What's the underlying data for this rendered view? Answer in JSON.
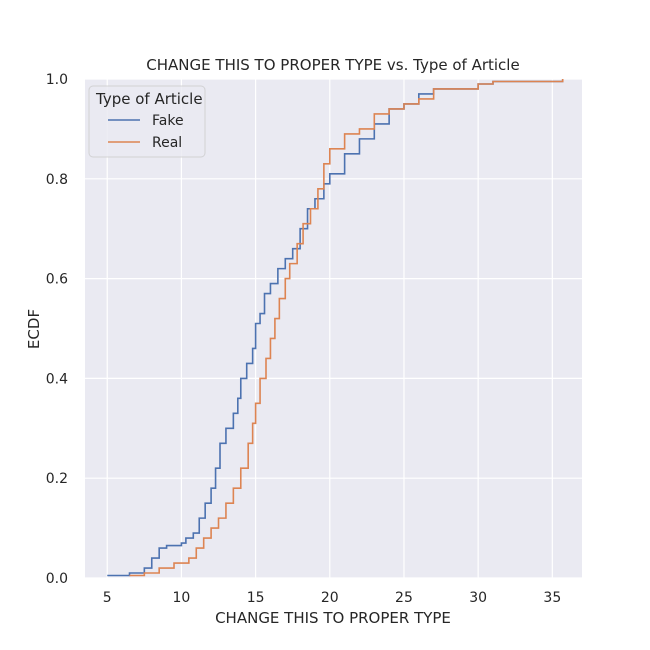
{
  "chart_data": {
    "type": "line",
    "title": "CHANGE THIS TO PROPER TYPE vs. Type of Article",
    "xlabel": "CHANGE THIS TO PROPER TYPE",
    "ylabel": "ECDF",
    "xlim": [
      3.5,
      37.0
    ],
    "ylim": [
      0.0,
      1.0
    ],
    "xticks": [
      5,
      10,
      15,
      20,
      25,
      30,
      35
    ],
    "yticks": [
      0.0,
      0.2,
      0.4,
      0.6,
      0.8,
      1.0
    ],
    "xtick_labels": [
      "5",
      "10",
      "15",
      "20",
      "25",
      "30",
      "35"
    ],
    "ytick_labels": [
      "0.0",
      "0.2",
      "0.4",
      "0.6",
      "0.8",
      "1.0"
    ],
    "grid": true,
    "legend": {
      "title": "Type of Article",
      "placement": "top-left"
    },
    "series": [
      {
        "name": "Fake",
        "color": "#4c72b0",
        "points": [
          [
            5.0,
            0.005
          ],
          [
            6.5,
            0.01
          ],
          [
            7.5,
            0.02
          ],
          [
            8.0,
            0.04
          ],
          [
            8.5,
            0.06
          ],
          [
            9.0,
            0.065
          ],
          [
            10.0,
            0.07
          ],
          [
            10.3,
            0.08
          ],
          [
            10.8,
            0.09
          ],
          [
            11.2,
            0.12
          ],
          [
            11.6,
            0.15
          ],
          [
            12.0,
            0.18
          ],
          [
            12.3,
            0.22
          ],
          [
            12.6,
            0.27
          ],
          [
            13.0,
            0.3
          ],
          [
            13.5,
            0.33
          ],
          [
            13.8,
            0.36
          ],
          [
            14.0,
            0.4
          ],
          [
            14.4,
            0.43
          ],
          [
            14.8,
            0.46
          ],
          [
            15.0,
            0.51
          ],
          [
            15.3,
            0.53
          ],
          [
            15.6,
            0.57
          ],
          [
            16.0,
            0.59
          ],
          [
            16.5,
            0.62
          ],
          [
            17.0,
            0.64
          ],
          [
            17.5,
            0.66
          ],
          [
            18.0,
            0.7
          ],
          [
            18.5,
            0.74
          ],
          [
            19.0,
            0.76
          ],
          [
            19.6,
            0.79
          ],
          [
            20.0,
            0.81
          ],
          [
            21.0,
            0.85
          ],
          [
            22.0,
            0.88
          ],
          [
            23.0,
            0.91
          ],
          [
            24.0,
            0.94
          ],
          [
            25.0,
            0.95
          ],
          [
            26.0,
            0.97
          ],
          [
            27.0,
            0.98
          ],
          [
            30.0,
            0.99
          ],
          [
            31.0,
            0.995
          ],
          [
            35.7,
            1.0
          ]
        ]
      },
      {
        "name": "Real",
        "color": "#dd8452",
        "points": [
          [
            6.5,
            0.005
          ],
          [
            7.5,
            0.01
          ],
          [
            8.5,
            0.02
          ],
          [
            9.5,
            0.03
          ],
          [
            10.5,
            0.04
          ],
          [
            11.0,
            0.06
          ],
          [
            11.5,
            0.08
          ],
          [
            12.0,
            0.1
          ],
          [
            12.5,
            0.12
          ],
          [
            13.0,
            0.15
          ],
          [
            13.5,
            0.18
          ],
          [
            14.0,
            0.22
          ],
          [
            14.5,
            0.27
          ],
          [
            14.8,
            0.31
          ],
          [
            15.0,
            0.35
          ],
          [
            15.3,
            0.4
          ],
          [
            15.7,
            0.44
          ],
          [
            16.0,
            0.48
          ],
          [
            16.3,
            0.52
          ],
          [
            16.6,
            0.56
          ],
          [
            17.0,
            0.6
          ],
          [
            17.3,
            0.63
          ],
          [
            17.8,
            0.67
          ],
          [
            18.2,
            0.71
          ],
          [
            18.7,
            0.74
          ],
          [
            19.2,
            0.78
          ],
          [
            19.6,
            0.83
          ],
          [
            20.0,
            0.86
          ],
          [
            21.0,
            0.89
          ],
          [
            22.0,
            0.9
          ],
          [
            23.0,
            0.93
          ],
          [
            24.0,
            0.94
          ],
          [
            25.0,
            0.95
          ],
          [
            26.0,
            0.96
          ],
          [
            27.0,
            0.98
          ],
          [
            30.0,
            0.99
          ],
          [
            31.0,
            0.995
          ],
          [
            35.7,
            1.0
          ]
        ]
      }
    ]
  }
}
